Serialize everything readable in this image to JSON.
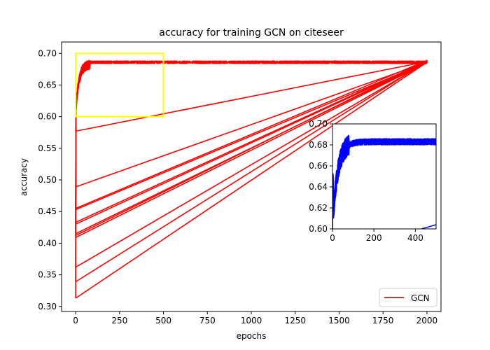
{
  "chart_data": [
    {
      "type": "line",
      "title": "accuracy for training GCN on citeseer",
      "xlabel": "epochs",
      "ylabel": "accuracy",
      "xlim": [
        -80,
        2080
      ],
      "ylim": [
        0.292,
        0.718
      ],
      "xticks": [
        0,
        250,
        500,
        750,
        1000,
        1250,
        1500,
        1750,
        2000
      ],
      "yticks": [
        0.3,
        0.35,
        0.4,
        0.45,
        0.5,
        0.55,
        0.6,
        0.65,
        0.7
      ],
      "legend": {
        "position": "lower right",
        "entries": [
          {
            "name": "GCN",
            "color": "#ff0000"
          }
        ]
      },
      "line_color": "#ff0000",
      "grid": false,
      "highlight_box": {
        "x": [
          0,
          500
        ],
        "y": [
          0.6,
          0.7
        ],
        "color": "#ffff00"
      },
      "plateau": {
        "x_start": 80,
        "x_end": 2000,
        "y_center": 0.686,
        "band": 0.004
      },
      "series": [
        {
          "name": "GCN",
          "start": 0.313,
          "end": 0.686
        },
        {
          "name": "GCN",
          "start": 0.339,
          "end": 0.687
        },
        {
          "name": "GCN",
          "start": 0.362,
          "end": 0.686
        },
        {
          "name": "GCN",
          "start": 0.409,
          "end": 0.685
        },
        {
          "name": "GCN",
          "start": 0.412,
          "end": 0.688
        },
        {
          "name": "GCN",
          "start": 0.415,
          "end": 0.686
        },
        {
          "name": "GCN",
          "start": 0.43,
          "end": 0.687
        },
        {
          "name": "GCN",
          "start": 0.433,
          "end": 0.688
        },
        {
          "name": "GCN",
          "start": 0.453,
          "end": 0.686
        },
        {
          "name": "GCN",
          "start": 0.455,
          "end": 0.689
        },
        {
          "name": "GCN",
          "start": 0.489,
          "end": 0.686
        },
        {
          "name": "GCN",
          "start": 0.577,
          "end": 0.687
        }
      ]
    },
    {
      "type": "line",
      "title": "",
      "xlim": [
        0,
        500
      ],
      "ylim": [
        0.6,
        0.7
      ],
      "xticks": [
        0,
        200,
        400
      ],
      "yticks": [
        0.6,
        0.62,
        0.64,
        0.66,
        0.68,
        0.7
      ],
      "line_color": "#0000ff",
      "grid": false,
      "tail_segment": {
        "x": [
          430,
          500
        ],
        "y": [
          0.6,
          0.604
        ]
      }
    }
  ]
}
